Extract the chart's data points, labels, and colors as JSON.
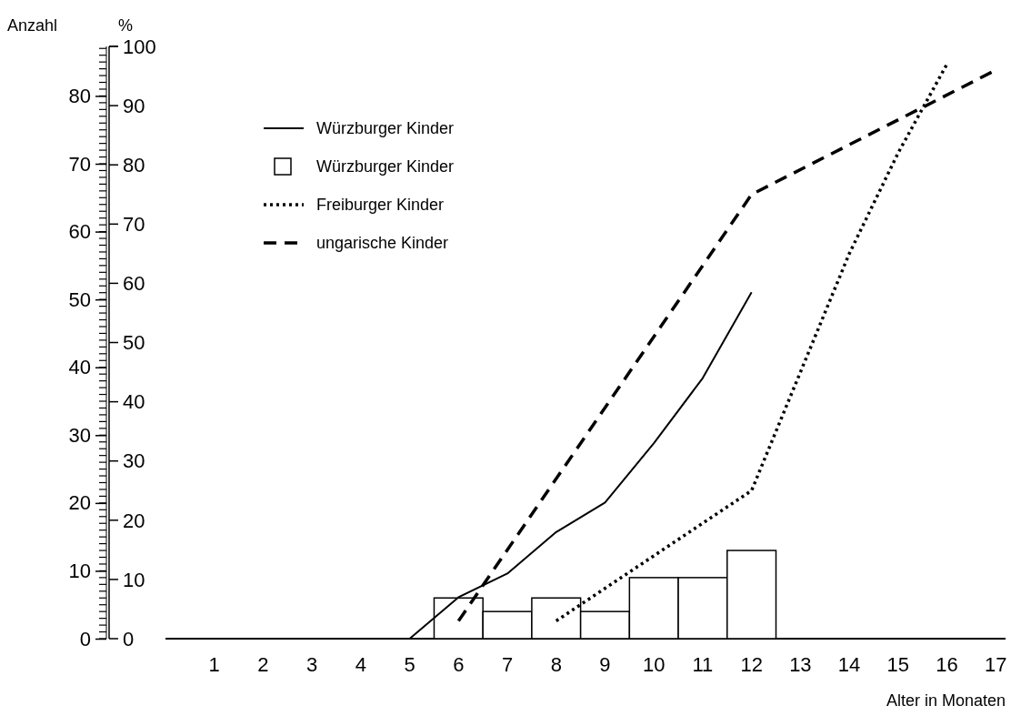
{
  "chart_data": {
    "type": "line",
    "xlabel": "Alter in Monaten",
    "ylabel": "%",
    "y2label": "Anzahl",
    "xlim": [
      0,
      17.2
    ],
    "xticks": [
      1,
      2,
      3,
      4,
      5,
      6,
      7,
      8,
      9,
      10,
      11,
      12,
      13,
      14,
      15,
      16,
      17
    ],
    "ylim": [
      0,
      100
    ],
    "yticks": [
      0,
      10,
      20,
      30,
      40,
      50,
      60,
      70,
      80,
      90,
      100
    ],
    "y2lim": [
      0,
      87.3
    ],
    "y2ticks": [
      0,
      10,
      20,
      30,
      40,
      50,
      60,
      70,
      80
    ],
    "grid": false,
    "legend": "top left",
    "marker": "none",
    "series": [
      {
        "name": "Würzburger Kinder",
        "line_style": "solid",
        "color": "#000000",
        "x": [
          1,
          2,
          3,
          4,
          5,
          6,
          7,
          8,
          9,
          10,
          11,
          12
        ],
        "values": [
          0,
          0,
          0,
          0,
          0,
          7,
          11,
          18,
          23,
          33,
          44,
          58.5
        ]
      },
      {
        "name": "Würzburger Kinder",
        "type": "bar",
        "axis": "y2",
        "color": "#ffffff",
        "x": [
          6,
          7,
          8,
          9,
          10,
          11,
          12
        ],
        "values": [
          6,
          4,
          6,
          4,
          9,
          9,
          13
        ]
      },
      {
        "name": "Freiburger Kinder",
        "line_style": "dotted",
        "color": "#000000",
        "x": [
          8,
          12,
          13,
          14,
          15,
          16
        ],
        "values": [
          3,
          25,
          45,
          65,
          82,
          97
        ]
      },
      {
        "name": "ungarische Kinder",
        "line_style": "dashed",
        "color": "#000000",
        "x": [
          6,
          12,
          17
        ],
        "values": [
          3,
          75,
          96
        ]
      }
    ]
  }
}
